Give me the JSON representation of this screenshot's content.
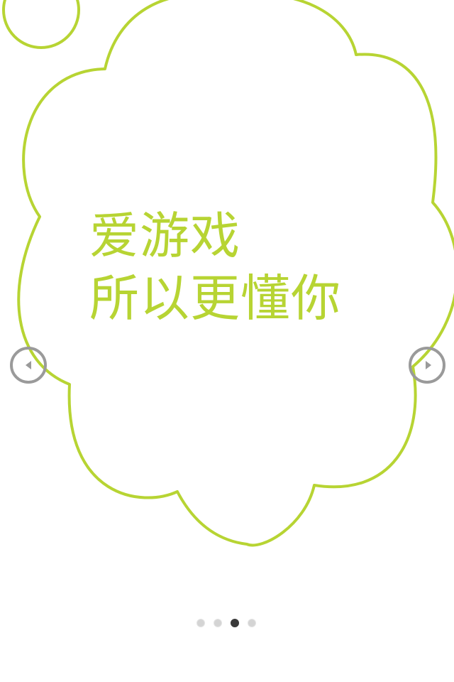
{
  "slide": {
    "headline_line1": "爱游戏",
    "headline_line2": "所以更懂你"
  },
  "pager": {
    "total_pages": 4,
    "active_index": 2
  },
  "colors": {
    "accent": "#b7d433",
    "arrow": "#9a9a9a",
    "dot_inactive": "#d4d4d4",
    "dot_active": "#3a3a3a"
  },
  "icons": {
    "prev": "chevron-left-icon",
    "next": "chevron-right-icon"
  }
}
